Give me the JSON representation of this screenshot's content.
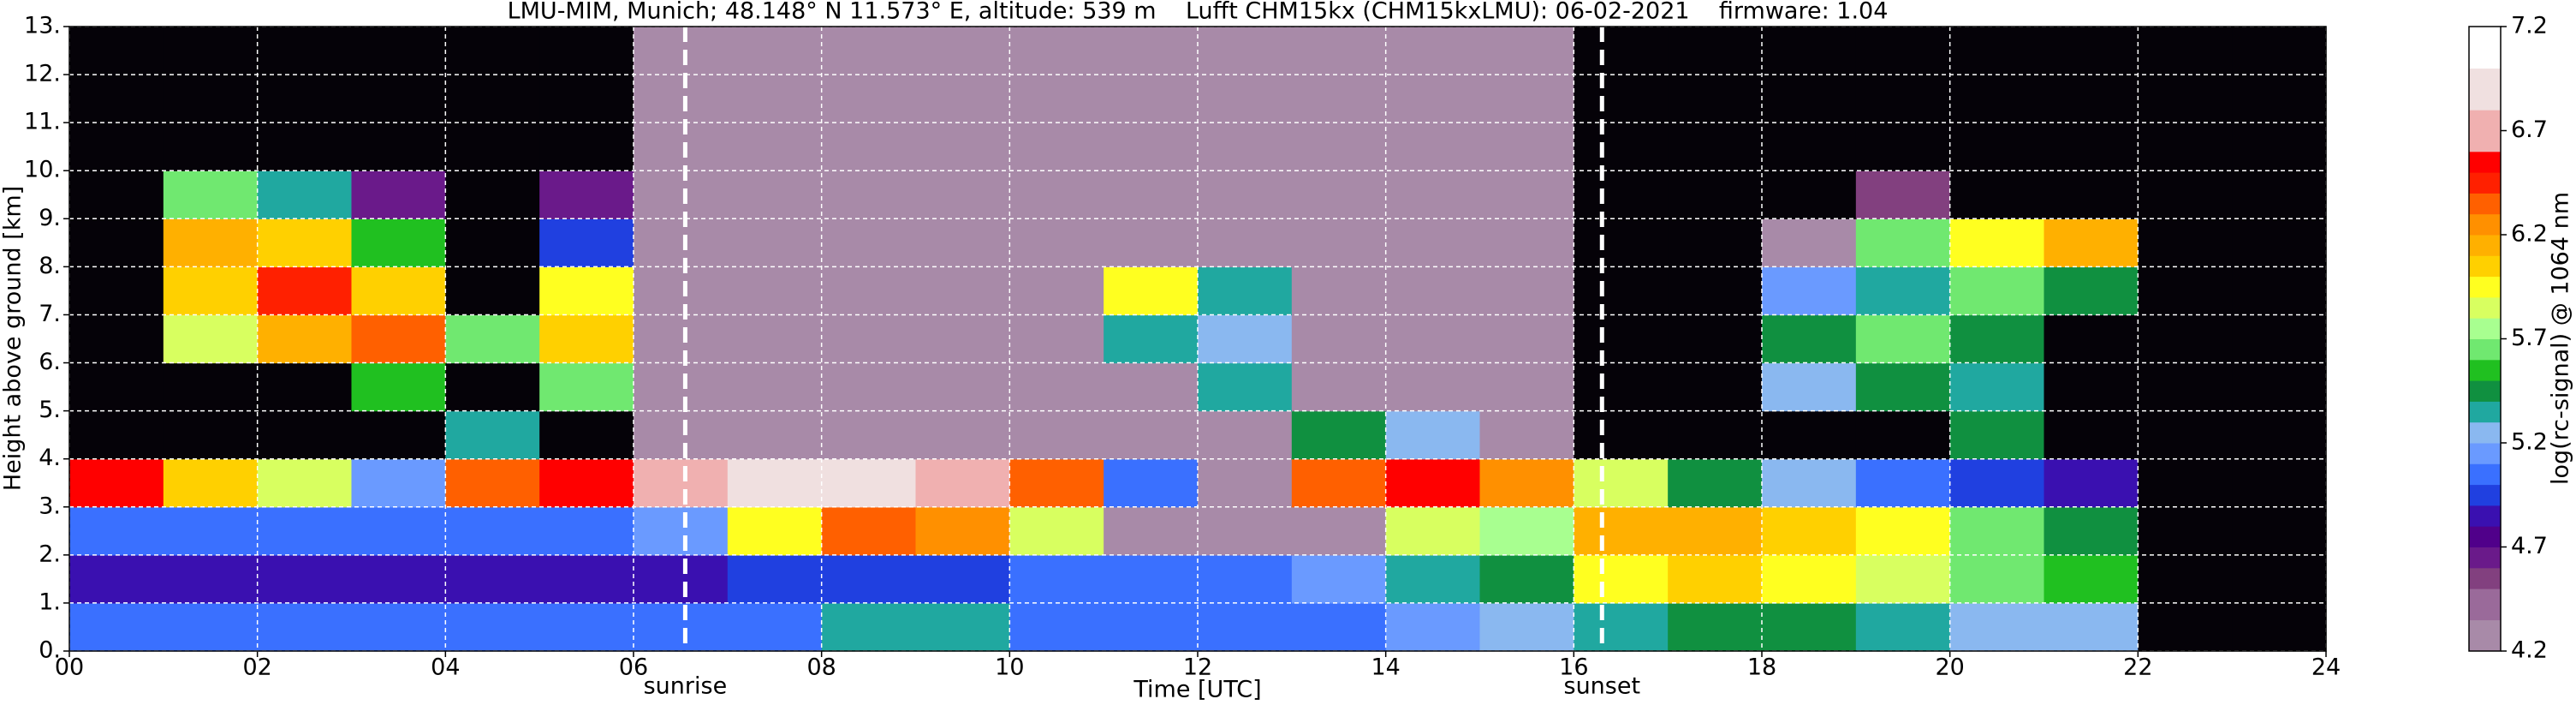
{
  "chart_data": {
    "type": "heatmap",
    "title": "LMU-MIM, Munich; 48.148° N 11.573° E, altitude: 539 m    Lufft CHM15kx (CHM15kxLMU): 06-02-2021    firmware: 1.04",
    "xlabel": "Time [UTC]",
    "ylabel": "Height above ground [km]",
    "colorbar_label": "log(rc-signal) @ 1064 nm",
    "xbins": [
      0,
      1,
      2,
      3,
      4,
      5,
      6,
      7,
      8,
      9,
      10,
      11,
      12,
      13,
      14,
      15,
      16,
      17,
      18,
      19,
      20,
      21,
      22,
      23,
      24
    ],
    "ybins": [
      0,
      1,
      2,
      3,
      4,
      5,
      6,
      7,
      8,
      9,
      10,
      11,
      12,
      13
    ],
    "z": [
      [
        5.0,
        5.0,
        5.0,
        5.0,
        5.0,
        5.0,
        5.0,
        5.0,
        5.3,
        5.3,
        5.0,
        5.0,
        5.0,
        5.0,
        5.1,
        5.2,
        5.3,
        5.4,
        5.4,
        5.3,
        5.2,
        5.2,
        4.1,
        4.1
      ],
      [
        4.8,
        4.8,
        4.8,
        4.8,
        4.8,
        4.8,
        4.8,
        4.9,
        4.9,
        4.9,
        5.0,
        5.0,
        5.0,
        5.1,
        5.3,
        5.4,
        5.9,
        6.0,
        5.9,
        5.8,
        5.6,
        5.5,
        4.1,
        4.1
      ],
      [
        5.0,
        5.0,
        5.0,
        5.0,
        5.0,
        5.0,
        5.1,
        5.9,
        6.3,
        6.2,
        5.8,
        4.3,
        4.3,
        4.3,
        5.8,
        5.7,
        6.1,
        6.1,
        6.0,
        5.9,
        5.6,
        5.4,
        4.1,
        4.1
      ],
      [
        6.5,
        6.0,
        5.8,
        5.1,
        6.3,
        6.5,
        6.6,
        6.8,
        6.8,
        6.6,
        6.3,
        5.0,
        4.3,
        6.3,
        6.5,
        6.2,
        5.8,
        5.4,
        5.2,
        5.0,
        4.9,
        4.8,
        4.1,
        4.1
      ],
      [
        4.1,
        4.1,
        4.1,
        4.1,
        5.3,
        4.1,
        4.2,
        4.3,
        4.3,
        4.3,
        4.3,
        4.3,
        4.3,
        5.4,
        5.2,
        4.3,
        4.1,
        4.1,
        4.1,
        4.1,
        5.4,
        4.1,
        4.1,
        4.1
      ],
      [
        4.1,
        4.1,
        4.1,
        5.5,
        4.1,
        5.6,
        4.2,
        4.3,
        4.3,
        4.3,
        4.3,
        4.3,
        5.3,
        4.3,
        4.3,
        4.3,
        4.1,
        4.1,
        5.2,
        5.4,
        5.3,
        4.1,
        4.1,
        4.1
      ],
      [
        4.1,
        5.8,
        6.1,
        6.3,
        5.6,
        6.0,
        4.2,
        4.3,
        4.3,
        4.3,
        4.3,
        5.3,
        5.2,
        4.3,
        4.3,
        4.3,
        4.1,
        4.1,
        5.4,
        5.6,
        5.4,
        4.1,
        4.1,
        4.1
      ],
      [
        4.1,
        6.0,
        6.4,
        6.0,
        4.1,
        5.9,
        4.2,
        4.3,
        4.3,
        4.3,
        4.3,
        5.9,
        5.3,
        4.3,
        4.3,
        4.3,
        4.1,
        4.1,
        5.1,
        5.3,
        5.6,
        5.4,
        4.1,
        4.1
      ],
      [
        4.1,
        6.1,
        6.0,
        5.5,
        4.1,
        4.9,
        4.2,
        4.3,
        4.3,
        4.3,
        4.3,
        4.3,
        4.3,
        4.3,
        4.3,
        4.3,
        4.1,
        4.1,
        4.2,
        5.6,
        5.9,
        6.1,
        4.1,
        4.1
      ],
      [
        4.1,
        5.6,
        5.3,
        4.6,
        4.1,
        4.6,
        4.2,
        4.3,
        4.3,
        4.3,
        4.3,
        4.3,
        4.3,
        4.3,
        4.3,
        4.3,
        4.1,
        4.1,
        4.1,
        4.5,
        4.1,
        4.1,
        4.1,
        4.1
      ],
      [
        4.1,
        4.1,
        4.1,
        4.1,
        4.1,
        4.1,
        4.2,
        4.3,
        4.3,
        4.3,
        4.3,
        4.3,
        4.3,
        4.3,
        4.3,
        4.3,
        4.1,
        4.1,
        4.1,
        4.1,
        4.1,
        4.1,
        4.1,
        4.1
      ],
      [
        4.1,
        4.1,
        4.1,
        4.1,
        4.1,
        4.1,
        4.2,
        4.3,
        4.3,
        4.3,
        4.3,
        4.3,
        4.3,
        4.3,
        4.3,
        4.3,
        4.1,
        4.1,
        4.1,
        4.1,
        4.1,
        4.1,
        4.1,
        4.1
      ],
      [
        4.1,
        4.1,
        4.1,
        4.1,
        4.1,
        4.1,
        4.2,
        4.3,
        4.3,
        4.3,
        4.3,
        4.3,
        4.3,
        4.3,
        4.3,
        4.3,
        4.1,
        4.1,
        4.1,
        4.1,
        4.1,
        4.1,
        4.1,
        4.1
      ]
    ],
    "xlim": [
      0,
      24
    ],
    "ylim": [
      0,
      13
    ],
    "xticks": [
      {
        "value": 0,
        "label": "00"
      },
      {
        "value": 2,
        "label": "02"
      },
      {
        "value": 4,
        "label": "04"
      },
      {
        "value": 6,
        "label": "06"
      },
      {
        "value": 8,
        "label": "08"
      },
      {
        "value": 10,
        "label": "10"
      },
      {
        "value": 12,
        "label": "12"
      },
      {
        "value": 14,
        "label": "14"
      },
      {
        "value": 16,
        "label": "16"
      },
      {
        "value": 18,
        "label": "18"
      },
      {
        "value": 20,
        "label": "20"
      },
      {
        "value": 22,
        "label": "22"
      },
      {
        "value": 24,
        "label": "24"
      }
    ],
    "yticks": [
      {
        "value": 0,
        "label": "0."
      },
      {
        "value": 1,
        "label": "1."
      },
      {
        "value": 2,
        "label": "2."
      },
      {
        "value": 3,
        "label": "3."
      },
      {
        "value": 4,
        "label": "4."
      },
      {
        "value": 5,
        "label": "5."
      },
      {
        "value": 6,
        "label": "6."
      },
      {
        "value": 7,
        "label": "7."
      },
      {
        "value": 8,
        "label": "8."
      },
      {
        "value": 9,
        "label": "9."
      },
      {
        "value": 10,
        "label": "10."
      },
      {
        "value": 11,
        "label": "11."
      },
      {
        "value": 12,
        "label": "12."
      },
      {
        "value": 13,
        "label": "13."
      }
    ],
    "grid": true,
    "clim": [
      4.2,
      7.2
    ],
    "cticks": [
      4.2,
      4.7,
      5.2,
      5.7,
      6.2,
      6.7,
      7.2
    ],
    "under_color": "#050208",
    "colorscale": [
      {
        "value": 4.2,
        "color": "#a88aa8"
      },
      {
        "value": 4.35,
        "color": "#9a6a9a"
      },
      {
        "value": 4.5,
        "color": "#82407f"
      },
      {
        "value": 4.6,
        "color": "#6a1a8a"
      },
      {
        "value": 4.7,
        "color": "#50008a"
      },
      {
        "value": 4.8,
        "color": "#3a10b0"
      },
      {
        "value": 4.9,
        "color": "#2040e0"
      },
      {
        "value": 5.0,
        "color": "#3a70ff"
      },
      {
        "value": 5.1,
        "color": "#6a9aff"
      },
      {
        "value": 5.2,
        "color": "#8ab8f0"
      },
      {
        "value": 5.3,
        "color": "#20a8a0"
      },
      {
        "value": 5.4,
        "color": "#109040"
      },
      {
        "value": 5.5,
        "color": "#20c020"
      },
      {
        "value": 5.6,
        "color": "#70e870"
      },
      {
        "value": 5.7,
        "color": "#a8ff90"
      },
      {
        "value": 5.8,
        "color": "#d8ff60"
      },
      {
        "value": 5.9,
        "color": "#ffff20"
      },
      {
        "value": 6.0,
        "color": "#ffd000"
      },
      {
        "value": 6.1,
        "color": "#ffb000"
      },
      {
        "value": 6.2,
        "color": "#ff9000"
      },
      {
        "value": 6.3,
        "color": "#ff6000"
      },
      {
        "value": 6.4,
        "color": "#ff2000"
      },
      {
        "value": 6.5,
        "color": "#ff0000"
      },
      {
        "value": 6.6,
        "color": "#f0b0b0"
      },
      {
        "value": 6.8,
        "color": "#f0e0e0"
      },
      {
        "value": 7.0,
        "color": "#ffffff"
      }
    ],
    "annotations": [
      {
        "x": 6.55,
        "text": "sunrise"
      },
      {
        "x": 16.3,
        "text": "sunset"
      }
    ]
  }
}
